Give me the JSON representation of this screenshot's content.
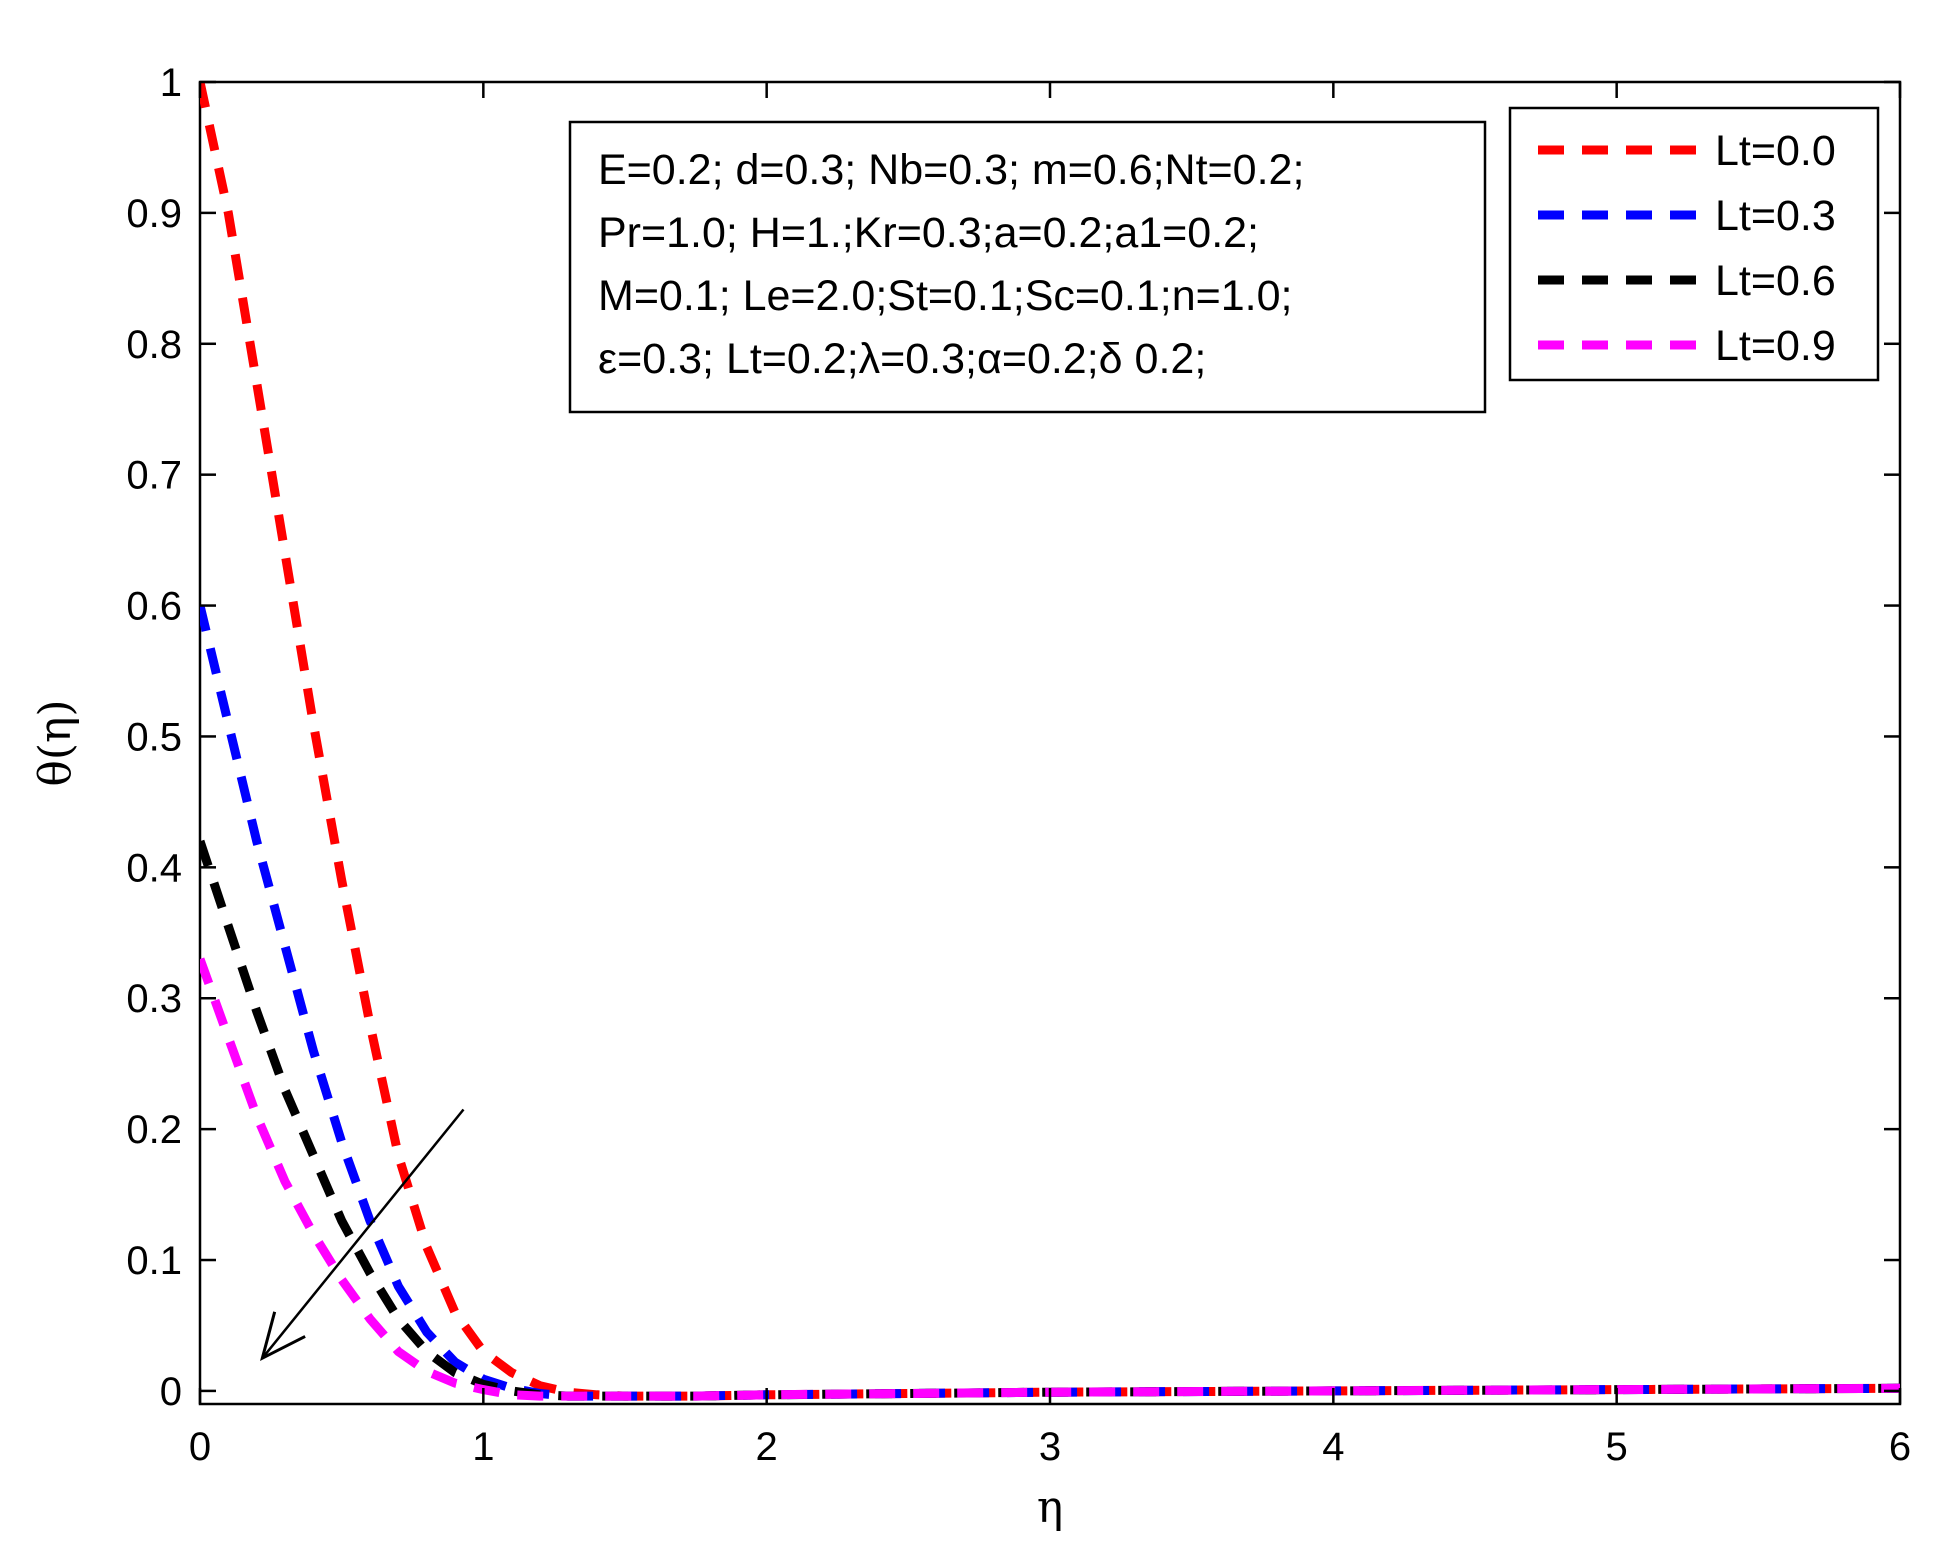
{
  "chart_data": {
    "type": "line",
    "title": "",
    "xlabel": "η",
    "ylabel": "θ(η)",
    "xlim": [
      0,
      6
    ],
    "ylim": [
      -0.01,
      1
    ],
    "xticks": [
      0,
      1,
      2,
      3,
      4,
      5,
      6
    ],
    "xtick_labels": [
      "0",
      "1",
      "2",
      "3",
      "4",
      "5",
      "6"
    ],
    "yticks": [
      0,
      0.1,
      0.2,
      0.3,
      0.4,
      0.5,
      0.6,
      0.7,
      0.8,
      0.9,
      1
    ],
    "ytick_labels": [
      "0",
      "0.1",
      "0.2",
      "0.3",
      "0.4",
      "0.5",
      "0.6",
      "0.7",
      "0.8",
      "0.9",
      "1"
    ],
    "grid": false,
    "legend_position": "top-right",
    "line_style": "dashed",
    "annotation_lines": [
      "E=0.2; d=0.3; Nb=0.3; m=0.6;Nt=0.2;",
      "Pr=1.0; H=1.;Kr=0.3;a=0.2;a1=0.2;",
      "M=0.1; Le=2.0;St=0.1;Sc=0.1;n=1.0;",
      "ε=0.3; Lt=0.2;λ=0.3;α=0.2;δ 0.2;"
    ],
    "arrow": {
      "from": [
        0.93,
        0.215
      ],
      "to": [
        0.22,
        0.025
      ],
      "meaning": "increasing Lt"
    },
    "x": [
      0,
      0.1,
      0.2,
      0.3,
      0.4,
      0.5,
      0.6,
      0.7,
      0.8,
      0.9,
      1.0,
      1.1,
      1.2,
      1.3,
      1.4,
      1.5,
      1.75,
      2.0,
      2.5,
      3.0,
      4.0,
      5.0,
      6.0
    ],
    "series": [
      {
        "name": "Lt=0.0",
        "color": "#ff0000",
        "values": [
          1.0,
          0.9,
          0.77,
          0.64,
          0.51,
          0.39,
          0.28,
          0.18,
          0.11,
          0.06,
          0.03,
          0.014,
          0.004,
          -0.001,
          -0.003,
          -0.004,
          -0.004,
          -0.003,
          -0.002,
          -0.001,
          0.0,
          0.001,
          0.002
        ]
      },
      {
        "name": "Lt=0.3",
        "color": "#0000ff",
        "values": [
          0.6,
          0.51,
          0.42,
          0.34,
          0.26,
          0.19,
          0.13,
          0.08,
          0.045,
          0.022,
          0.009,
          0.002,
          -0.002,
          -0.004,
          -0.004,
          -0.004,
          -0.004,
          -0.003,
          -0.002,
          -0.001,
          0.0,
          0.001,
          0.002
        ]
      },
      {
        "name": "Lt=0.6",
        "color": "#000000",
        "values": [
          0.42,
          0.355,
          0.29,
          0.23,
          0.18,
          0.13,
          0.09,
          0.055,
          0.03,
          0.014,
          0.005,
          0.0,
          -0.003,
          -0.004,
          -0.004,
          -0.004,
          -0.004,
          -0.003,
          -0.002,
          -0.001,
          0.0,
          0.001,
          0.002
        ]
      },
      {
        "name": "Lt=0.9",
        "color": "#ff00ff",
        "values": [
          0.33,
          0.27,
          0.21,
          0.16,
          0.12,
          0.085,
          0.055,
          0.03,
          0.015,
          0.006,
          0.001,
          -0.003,
          -0.004,
          -0.004,
          -0.004,
          -0.004,
          -0.004,
          -0.003,
          -0.002,
          -0.001,
          0.0,
          0.001,
          0.002
        ]
      }
    ]
  }
}
